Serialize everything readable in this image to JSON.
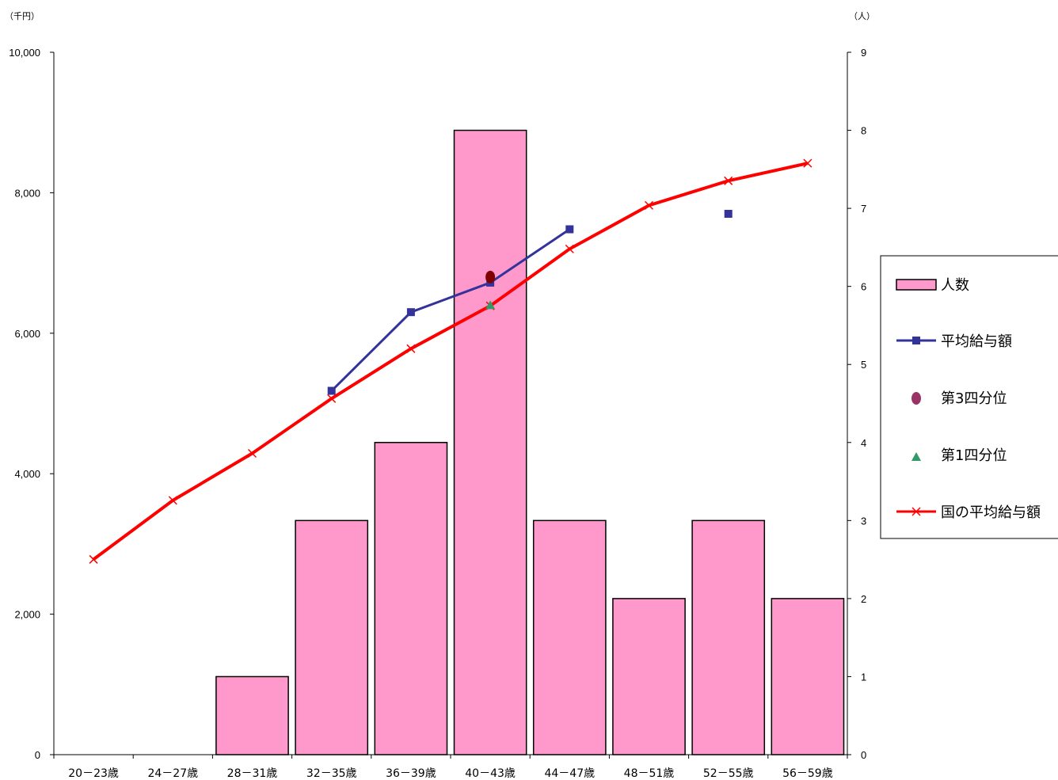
{
  "chart_data": {
    "type": "bar",
    "categories": [
      "20－23歳",
      "24－27歳",
      "28－31歳",
      "32－35歳",
      "36－39歳",
      "40－43歳",
      "44－47歳",
      "48－51歳",
      "52－55歳",
      "56－59歳"
    ],
    "y_left": {
      "unit": "（千円）",
      "ylim": [
        0,
        10000
      ],
      "ticks": [
        0,
        2000,
        4000,
        6000,
        8000,
        10000
      ],
      "tick_labels": [
        "0",
        "2,000",
        "4,000",
        "6,000",
        "8,000",
        "10,000"
      ]
    },
    "y_right": {
      "unit": "（人）",
      "ylim": [
        0,
        9
      ],
      "ticks": [
        0,
        1,
        2,
        3,
        4,
        5,
        6,
        7,
        8,
        9
      ],
      "tick_labels": [
        "0",
        "1",
        "2",
        "3",
        "4",
        "5",
        "6",
        "7",
        "8",
        "9"
      ]
    },
    "series": [
      {
        "name": "人数",
        "type": "bar",
        "axis": "right",
        "color": "#ff99cc",
        "values": [
          0,
          0,
          1,
          3,
          4,
          8,
          3,
          2,
          3,
          2
        ]
      },
      {
        "name": "平均給与額",
        "type": "line",
        "axis": "left",
        "color": "#333399",
        "marker": "square",
        "values": [
          null,
          null,
          null,
          5180,
          6300,
          6720,
          7480,
          null,
          7700,
          null
        ]
      },
      {
        "name": "第3四分位",
        "type": "scatter",
        "axis": "left",
        "color": "#993366",
        "marker": "circle",
        "values": [
          null,
          null,
          null,
          null,
          null,
          6800,
          null,
          null,
          null,
          null
        ]
      },
      {
        "name": "第1四分位",
        "type": "scatter",
        "axis": "left",
        "color": "#339966",
        "marker": "triangle",
        "values": [
          null,
          null,
          null,
          null,
          null,
          6400,
          null,
          null,
          null,
          null
        ]
      },
      {
        "name": "国の平均給与額",
        "type": "line",
        "axis": "left",
        "color": "#ff0000",
        "marker": "x",
        "values": [
          2780,
          3620,
          4290,
          5070,
          5780,
          6390,
          7200,
          7820,
          8170,
          8420
        ]
      }
    ],
    "legend_position": "right"
  }
}
